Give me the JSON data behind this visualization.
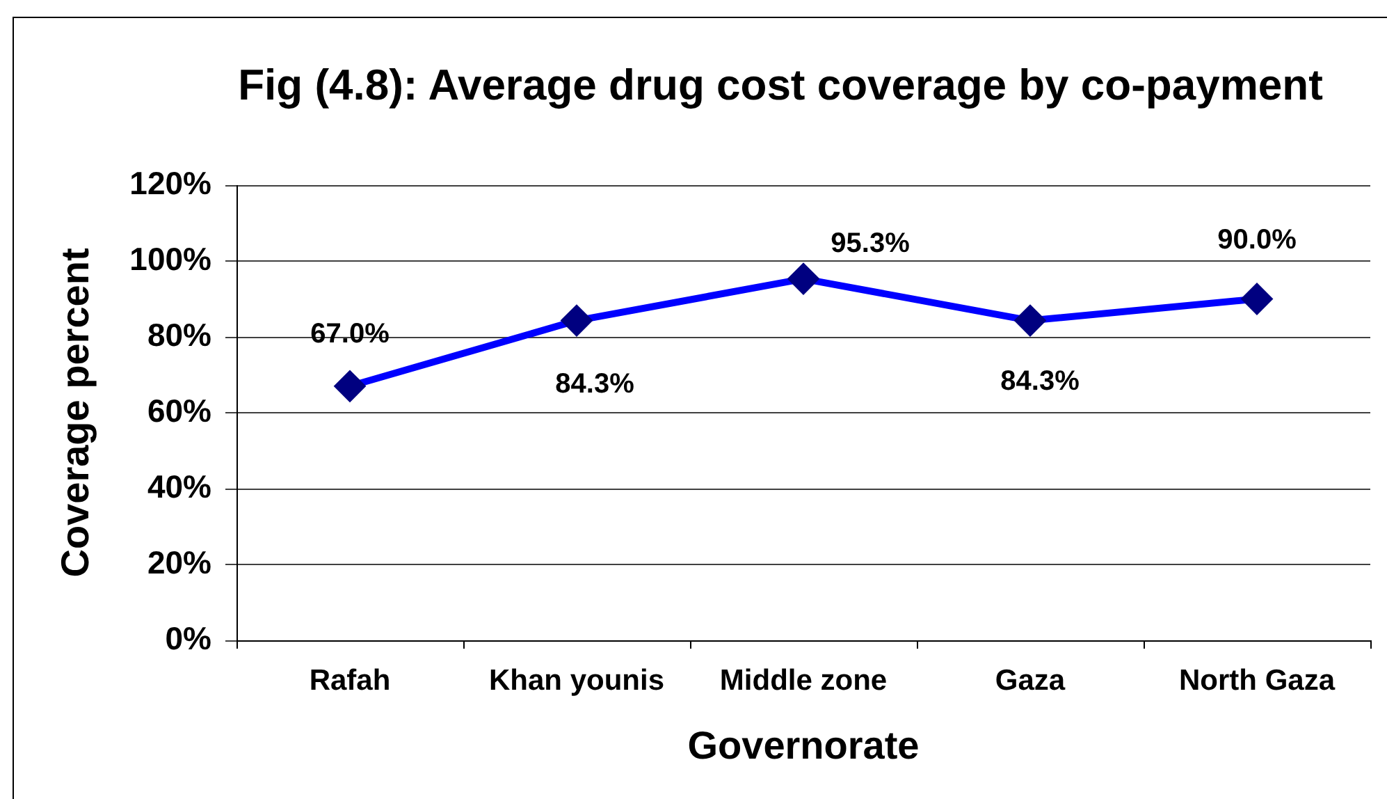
{
  "chart_data": {
    "type": "line",
    "title": "Fig (4.8): Average drug cost coverage by co-payment",
    "xlabel": "Governorate",
    "ylabel": "Coverage percent",
    "categories": [
      "Rafah",
      "Khan younis",
      "Middle zone",
      "Gaza",
      "North Gaza"
    ],
    "values": [
      67.0,
      84.3,
      95.3,
      84.3,
      90.0
    ],
    "color": "#0000ff",
    "value_labels": [
      "67.0%",
      "84.3%",
      "95.3%",
      "84.3%",
      "90.0%"
    ],
    "ylim": [
      0,
      120
    ],
    "yticks": [
      {
        "value": 0,
        "label": "0%"
      },
      {
        "value": 20,
        "label": "20%"
      },
      {
        "value": 40,
        "label": "40%"
      },
      {
        "value": 60,
        "label": "60%"
      },
      {
        "value": 80,
        "label": "80%"
      },
      {
        "value": 100,
        "label": "100%"
      },
      {
        "value": 120,
        "label": "120%"
      }
    ],
    "grid": "y",
    "legend": false,
    "marker": "diamond",
    "line_style": "solid"
  }
}
